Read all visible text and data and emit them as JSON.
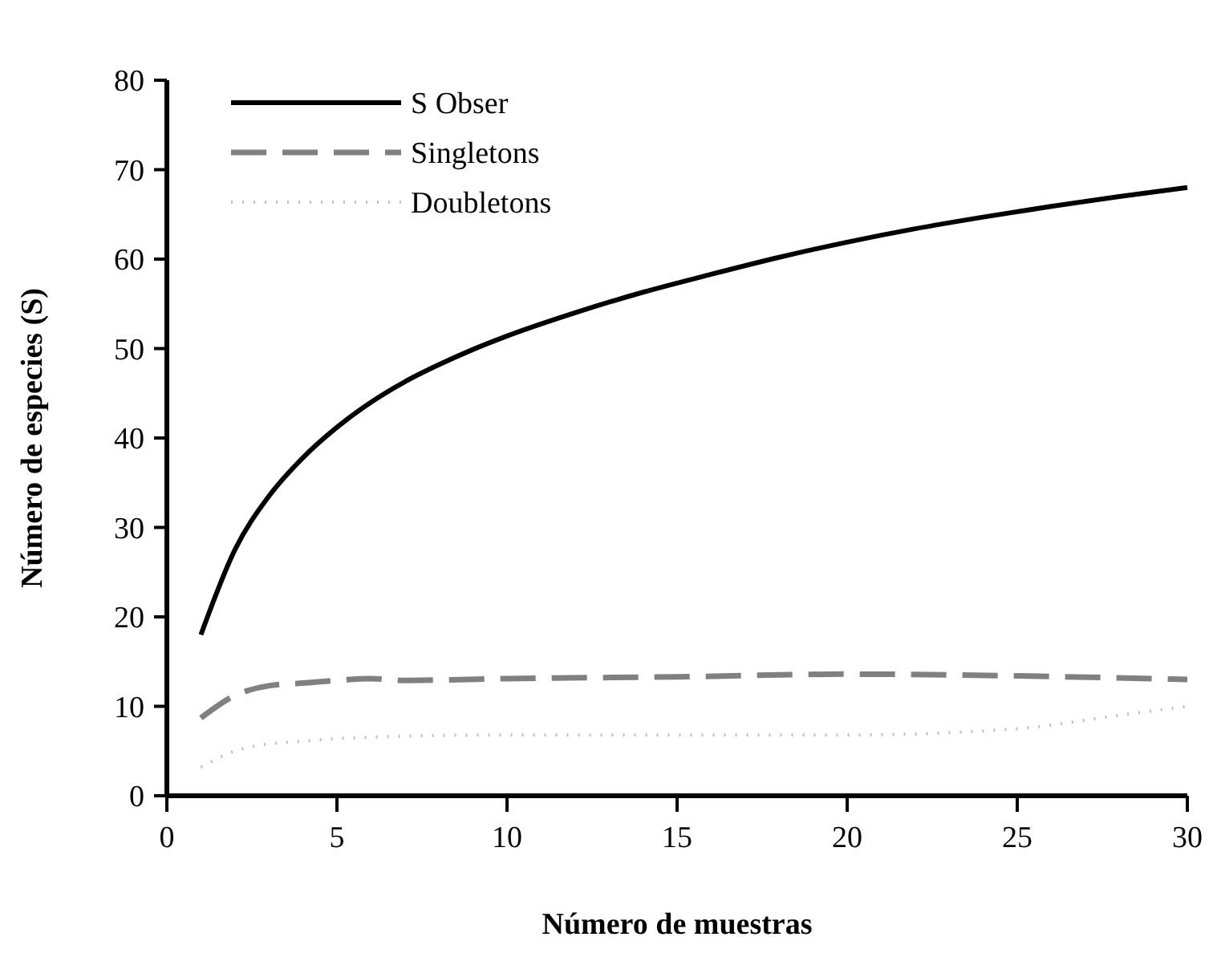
{
  "chart_data": {
    "type": "line",
    "xlabel": "Número de muestras",
    "ylabel": "Número de especies (S)",
    "xlim": [
      0,
      30
    ],
    "xticks": [
      0,
      5,
      10,
      15,
      20,
      25,
      30
    ],
    "ylim": [
      0,
      80
    ],
    "yticks": [
      0,
      10,
      20,
      30,
      40,
      50,
      60,
      70,
      80
    ],
    "legend": "top left",
    "grid": false,
    "series": [
      {
        "name": "S Obser",
        "color": "#000000",
        "line_style": "solid",
        "x": [
          1,
          2,
          3,
          4,
          5,
          6,
          7,
          8,
          9,
          10,
          12,
          14,
          16,
          18,
          20,
          22,
          24,
          26,
          28,
          30
        ],
        "values": [
          18,
          27.5,
          33.5,
          37.8,
          41.2,
          44,
          46.3,
          48.2,
          49.9,
          51.4,
          54,
          56.3,
          58.3,
          60.2,
          61.9,
          63.4,
          64.7,
          65.9,
          67,
          68
        ]
      },
      {
        "name": "Singletons",
        "color": "#808080",
        "line_style": "dashed",
        "x": [
          1,
          2,
          3,
          4,
          5,
          6,
          7,
          10,
          15,
          20,
          25,
          30
        ],
        "values": [
          8.7,
          11.2,
          12.3,
          12.6,
          12.9,
          13.1,
          12.9,
          13.1,
          13.3,
          13.6,
          13.4,
          13
        ]
      },
      {
        "name": "Doubletons",
        "color": "#c0c0c0",
        "line_style": "dotted",
        "x": [
          1,
          2,
          3,
          4,
          5,
          10,
          20,
          25,
          28,
          30
        ],
        "values": [
          3.2,
          5,
          5.8,
          6.1,
          6.4,
          6.8,
          6.8,
          7.5,
          9,
          10
        ]
      }
    ]
  }
}
